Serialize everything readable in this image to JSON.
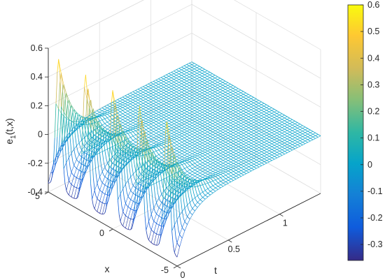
{
  "chart_data": {
    "type": "surface",
    "xlabel": "t",
    "ylabel": "x",
    "zlabel": "e",
    "zlabel_sub": "1",
    "zlabel_args": "(t,x)",
    "t_range": [
      0,
      1.4
    ],
    "x_range": [
      -5,
      5
    ],
    "zlim": [
      -0.4,
      0.6
    ],
    "t_ticks": [
      "0",
      "0.5",
      "1"
    ],
    "x_ticks": [
      "-5",
      "0",
      "5"
    ],
    "z_ticks": [
      "-0.4",
      "-0.2",
      "0",
      "0.2",
      "0.4",
      "0.6"
    ],
    "grid": true,
    "colormap": "parula",
    "colorbar": {
      "position": "right",
      "range": [
        -0.36,
        0.6
      ],
      "ticks": [
        "-0.3",
        "-0.2",
        "-0.1",
        "0",
        "0.1",
        "0.2",
        "0.3",
        "0.4",
        "0.5",
        "0.6"
      ]
    },
    "oscillation": {
      "peaks_at_x": [
        4.2,
        2.1,
        0,
        -2.1,
        -4.2
      ],
      "peak_value": 0.6,
      "trough_value": -0.36,
      "decay_t": 0.12
    }
  }
}
